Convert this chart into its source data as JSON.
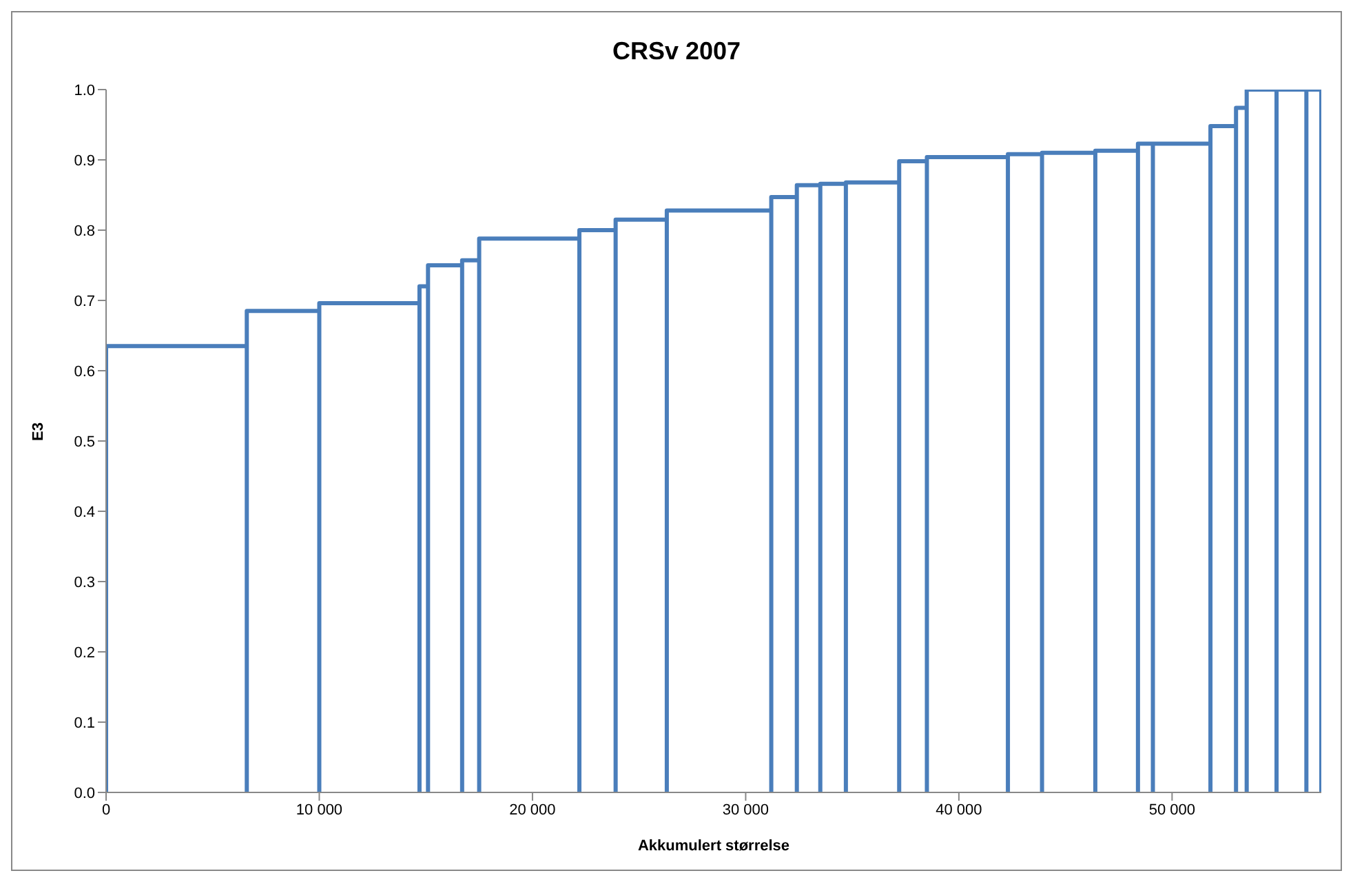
{
  "chart_data": {
    "type": "line",
    "title": "CRSv 2007",
    "xlabel": "Akkumulert størrelse",
    "ylabel": "E3",
    "x": [
      0,
      0,
      6600,
      6600,
      6600,
      6600,
      10000,
      10000,
      10000,
      10000,
      14700,
      14700,
      14700,
      14700,
      15100,
      15100,
      15100,
      15100,
      16700,
      16700,
      16700,
      16700,
      17500,
      17500,
      17500,
      17500,
      22200,
      22200,
      22200,
      22200,
      23900,
      23900,
      23900,
      23900,
      26300,
      26300,
      26300,
      26300,
      31200,
      31200,
      31200,
      31200,
      32400,
      32400,
      32400,
      32400,
      33500,
      33500,
      33500,
      33500,
      34700,
      34700,
      34700,
      34700,
      37200,
      37200,
      37200,
      37200,
      38500,
      38500,
      38500,
      38500,
      42300,
      42300,
      42300,
      42300,
      43900,
      43900,
      43900,
      43900,
      46400,
      46400,
      46400,
      46400,
      48400,
      48400,
      48400,
      48400,
      49100,
      49100,
      49100,
      49100,
      51800,
      51800,
      51800,
      51800,
      53000,
      53000,
      53000,
      53000,
      53500,
      53500,
      53500,
      53500,
      54900,
      54900,
      54900,
      54900,
      56300,
      56300,
      56300,
      56300,
      57000,
      57000
    ],
    "series": [
      {
        "color": "#4a7ebb",
        "values": [
          0,
          0.635,
          0.635,
          0,
          0,
          0.685,
          0.685,
          0,
          0,
          0.696,
          0.696,
          0,
          0,
          0.72,
          0.72,
          0,
          0,
          0.75,
          0.75,
          0,
          0,
          0.757,
          0.757,
          0,
          0,
          0.788,
          0.788,
          0,
          0,
          0.8,
          0.8,
          0,
          0,
          0.815,
          0.815,
          0,
          0,
          0.828,
          0.828,
          0,
          0,
          0.847,
          0.847,
          0,
          0,
          0.864,
          0.864,
          0,
          0,
          0.866,
          0.866,
          0,
          0,
          0.868,
          0.868,
          0,
          0,
          0.898,
          0.898,
          0,
          0,
          0.904,
          0.904,
          0,
          0,
          0.908,
          0.908,
          0,
          0,
          0.91,
          0.91,
          0,
          0,
          0.913,
          0.913,
          0,
          0,
          0.923,
          0.923,
          0,
          0,
          0.923,
          0.923,
          0,
          0,
          0.948,
          0.948,
          0,
          0,
          0.974,
          0.974,
          0,
          0,
          1,
          1,
          0,
          0,
          1,
          1,
          0,
          0,
          1,
          1,
          0
        ]
      }
    ],
    "xlim": [
      0,
      57000
    ],
    "xticks": [
      0,
      {
        "value": 10000,
        "label": "10 000"
      },
      {
        "value": 20000,
        "label": "20 000"
      },
      {
        "value": 30000,
        "label": "30 000"
      },
      {
        "value": 40000,
        "label": "40 000"
      },
      {
        "value": 50000,
        "label": "50 000"
      }
    ],
    "ylim": [
      0,
      1
    ],
    "yticks": [
      {
        "value": 0,
        "label": "0.0"
      },
      0.1,
      0.2,
      0.3,
      0.4,
      0.5,
      0.6,
      0.7,
      0.8,
      0.9,
      {
        "value": 1,
        "label": "1.0"
      }
    ],
    "marker": "none",
    "line_style": "solid",
    "legend": false,
    "grid": false
  }
}
